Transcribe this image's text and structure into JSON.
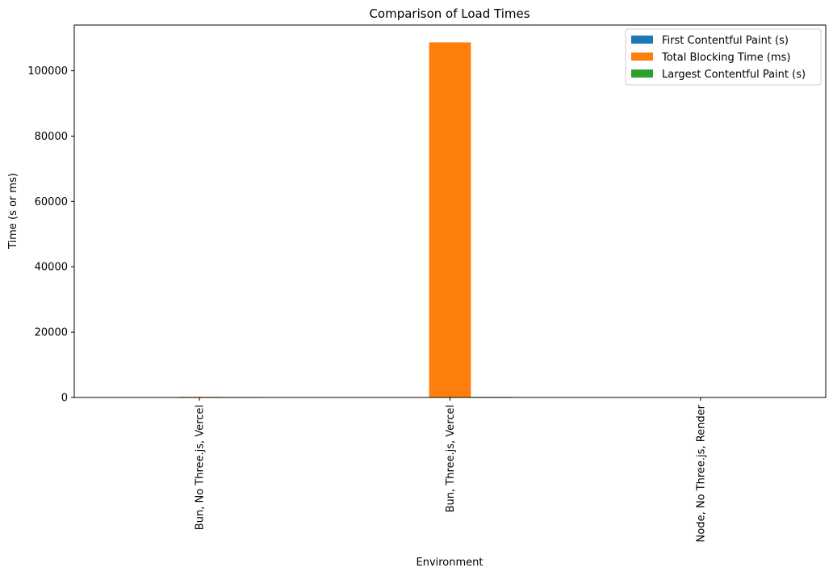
{
  "chart_data": {
    "type": "bar",
    "title": "Comparison of Load Times",
    "xlabel": "Environment",
    "ylabel": "Time (s or ms)",
    "categories": [
      "Bun, No Three.js, Vercel",
      "Bun, Three.js, Vercel",
      "Node, No Three.js, Render"
    ],
    "series": [
      {
        "name": "First Contentful Paint (s)",
        "color": "#1f77b4",
        "values": [
          1.2,
          1.4,
          0.8
        ]
      },
      {
        "name": "Total Blocking Time (ms)",
        "color": "#ff7f0e",
        "values": [
          200,
          108700,
          0
        ]
      },
      {
        "name": "Largest Contentful Paint (s)",
        "color": "#2ca02c",
        "values": [
          150,
          180,
          1.5
        ]
      }
    ],
    "ylim": [
      0,
      114000
    ],
    "yticks": [
      0,
      20000,
      40000,
      60000,
      80000,
      100000
    ],
    "legend_position": "top-right",
    "grid": false
  }
}
